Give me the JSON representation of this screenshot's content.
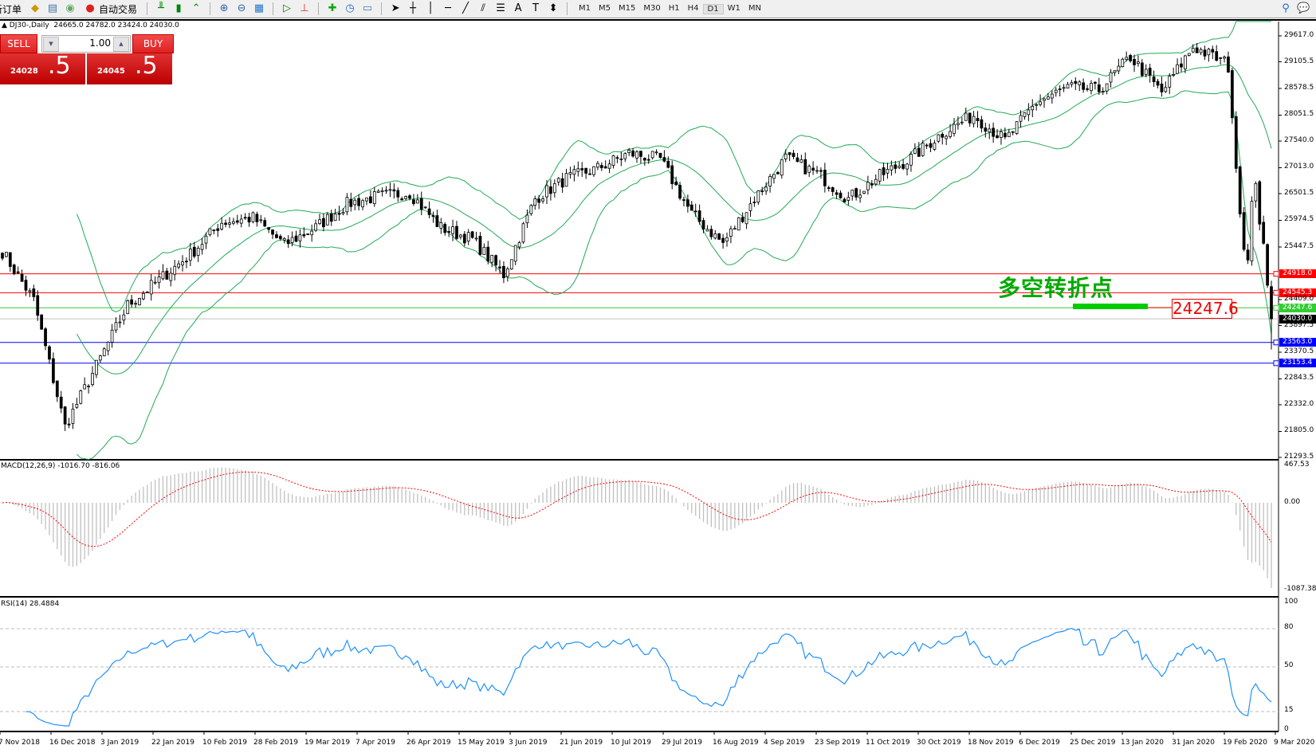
{
  "toolbar": {
    "new_order": "新订单",
    "auto_trading": "自动交易",
    "timeframes": [
      "M1",
      "M5",
      "M15",
      "M30",
      "H1",
      "H4",
      "D1",
      "W1",
      "MN"
    ],
    "active_timeframe": "D1"
  },
  "chart_header": "DJ30-,Daily  24665.0 24782.0 23424.0 24030.0",
  "trade_panel": {
    "sell_label": "SELL",
    "buy_label": "BUY",
    "lot": "1.00",
    "sell_price_main": "24028",
    "sell_price_frac": ".5",
    "buy_price_main": "24045",
    "buy_price_frac": ".5"
  },
  "annotation": {
    "text": "多空转折点",
    "price_note": "24247.6",
    "color": "#00cc00"
  },
  "price_axis": [
    "29617.0",
    "29105.5",
    "28578.5",
    "28051.5",
    "27540.0",
    "27013.0",
    "26501.5",
    "25974.5",
    "25447.5",
    "24409.0",
    "23897.5",
    "23370.5",
    "22843.5",
    "22332.0",
    "21805.0",
    "21293.5"
  ],
  "levels": [
    {
      "price": "24918.0",
      "color": "#ff0000"
    },
    {
      "price": "24545.3",
      "color": "#ff0000"
    },
    {
      "price": "24247.6",
      "color": "#33cc33"
    },
    {
      "price": "24030.0",
      "color": "#000000",
      "line": "#c0c0c0"
    },
    {
      "price": "23563.0",
      "color": "#0000ff"
    },
    {
      "price": "23153.4",
      "color": "#0000ff"
    }
  ],
  "macd": {
    "label": "MACD(12,26,9) -1016.70 -816.06",
    "axis": [
      "467.53",
      "0.00",
      "-1087.38"
    ]
  },
  "rsi": {
    "label": "RSI(14) 28.4884",
    "axis": [
      "100",
      "80",
      "50",
      "15",
      "0"
    ]
  },
  "dates": [
    "7 Nov 2018",
    "16 Dec 2018",
    "3 Jan 2019",
    "22 Jan 2019",
    "10 Feb 2019",
    "28 Feb 2019",
    "19 Mar 2019",
    "7 Apr 2019",
    "26 Apr 2019",
    "15 May 2019",
    "3 Jun 2019",
    "21 Jun 2019",
    "10 Jul 2019",
    "29 Jul 2019",
    "16 Aug 2019",
    "4 Sep 2019",
    "23 Sep 2019",
    "11 Oct 2019",
    "30 Oct 2019",
    "18 Nov 2019",
    "6 Dec 2019",
    "25 Dec 2019",
    "13 Jan 2020",
    "31 Jan 2020",
    "19 Feb 2020",
    "9 Mar 2020"
  ],
  "chart_data": {
    "type": "candlestick",
    "symbol": "DJ30-",
    "period": "Daily",
    "ylim": [
      21293.5,
      29617.0
    ],
    "last_bar": {
      "open": 24665.0,
      "high": 24782.0,
      "low": 23424.0,
      "close": 24030.0
    },
    "approx_closes_every_8_bars": [
      25356,
      24400,
      21900,
      23100,
      24300,
      24800,
      25300,
      25940,
      26020,
      25500,
      25830,
      26300,
      26450,
      26520,
      25830,
      25600,
      24900,
      26400,
      26800,
      27000,
      27300,
      27180,
      26100,
      25520,
      26400,
      27200,
      26900,
      26400,
      26850,
      27200,
      27700,
      28050,
      27550,
      28300,
      28600,
      28550,
      29200,
      28500,
      29400,
      29100
    ],
    "recent_daily_closes": [
      28900,
      28000,
      27000,
      26100,
      25400,
      25190,
      26350,
      26700,
      25900,
      25520,
      24693,
      24030
    ],
    "indicators": [
      "Bollinger Bands(20,2)",
      "MACD(12,26,9)",
      "RSI(14)"
    ],
    "colors": {
      "bands": "#22aa55",
      "macd_hist": "#c0c0c0",
      "macd_signal": "#ff0000",
      "rsi": "#1e90ff"
    }
  }
}
